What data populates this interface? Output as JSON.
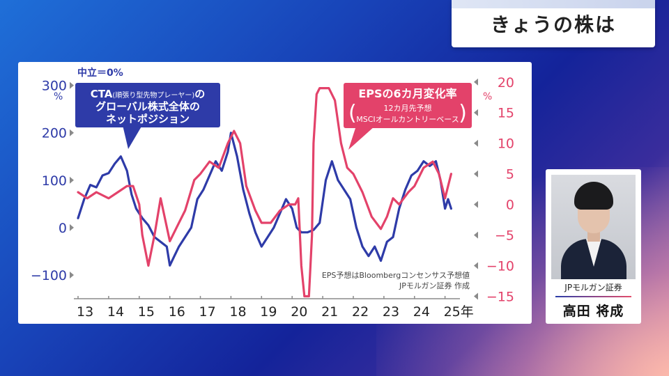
{
  "topic": {
    "title": "きょうの株は"
  },
  "chart_data": {
    "type": "line",
    "x_tick_labels": [
      "13",
      "14",
      "15",
      "16",
      "17",
      "18",
      "19",
      "20",
      "21",
      "22",
      "23",
      "24",
      "25年"
    ],
    "xlim": [
      2013.0,
      2025.35
    ],
    "left_axis": {
      "ticks": [
        "300",
        "200",
        "100",
        "0",
        "−100"
      ],
      "tick_values": [
        300,
        200,
        100,
        0,
        -100
      ],
      "unit": "%",
      "ylim": [
        -150,
        320
      ],
      "note": "中立＝0%"
    },
    "right_axis": {
      "ticks": [
        "20",
        "15",
        "10",
        "5",
        "0",
        "−5",
        "−10",
        "−15"
      ],
      "tick_values": [
        20,
        15,
        10,
        5,
        0,
        -5,
        -10,
        -15
      ],
      "unit": "%",
      "ylim": [
        -15.4,
        21.0
      ]
    },
    "series": [
      {
        "name": "CTA(順張り型先物プレーヤー)のグローバル株式全体のネットポジション",
        "color": "#2e3ba8",
        "axis": "left",
        "x": [
          2013.0,
          2013.2,
          2013.4,
          2013.6,
          2013.8,
          2014.0,
          2014.2,
          2014.4,
          2014.6,
          2014.75,
          2014.9,
          2015.1,
          2015.3,
          2015.5,
          2015.7,
          2015.9,
          2016.0,
          2016.15,
          2016.3,
          2016.5,
          2016.7,
          2016.9,
          2017.1,
          2017.3,
          2017.5,
          2017.7,
          2017.9,
          2018.0,
          2018.2,
          2018.4,
          2018.6,
          2018.8,
          2019.0,
          2019.2,
          2019.4,
          2019.6,
          2019.8,
          2020.0,
          2020.15,
          2020.3,
          2020.5,
          2020.7,
          2020.9,
          2021.1,
          2021.3,
          2021.5,
          2021.7,
          2021.9,
          2022.1,
          2022.3,
          2022.5,
          2022.7,
          2022.9,
          2023.1,
          2023.3,
          2023.5,
          2023.7,
          2023.9,
          2024.1,
          2024.3,
          2024.5,
          2024.7,
          2024.85,
          2025.0,
          2025.1,
          2025.2
        ],
        "values": [
          20,
          60,
          90,
          85,
          110,
          115,
          135,
          150,
          120,
          70,
          40,
          20,
          5,
          -20,
          -30,
          -40,
          -80,
          -60,
          -40,
          -20,
          0,
          60,
          80,
          110,
          140,
          120,
          160,
          200,
          150,
          80,
          30,
          -10,
          -40,
          -20,
          0,
          30,
          60,
          40,
          0,
          -10,
          -10,
          -5,
          10,
          100,
          140,
          100,
          80,
          60,
          0,
          -40,
          -60,
          -40,
          -70,
          -30,
          -20,
          40,
          80,
          110,
          120,
          140,
          130,
          140,
          100,
          40,
          60,
          40
        ]
      },
      {
        "name": "EPSの6カ月変化率",
        "subtitle": "12カ月先予想 MSCIオールカントリーベース",
        "color": "#e3426a",
        "axis": "right",
        "x": [
          2013.0,
          2013.3,
          2013.6,
          2014.0,
          2014.3,
          2014.6,
          2014.8,
          2015.0,
          2015.1,
          2015.3,
          2015.5,
          2015.7,
          2016.0,
          2016.2,
          2016.5,
          2016.8,
          2017.0,
          2017.3,
          2017.6,
          2017.9,
          2018.1,
          2018.3,
          2018.5,
          2018.8,
          2019.0,
          2019.3,
          2019.6,
          2019.9,
          2020.1,
          2020.2,
          2020.3,
          2020.4,
          2020.55,
          2020.65,
          2020.7,
          2020.8,
          2020.9,
          2021.0,
          2021.2,
          2021.4,
          2021.6,
          2021.8,
          2022.0,
          2022.3,
          2022.6,
          2022.9,
          2023.1,
          2023.3,
          2023.5,
          2023.8,
          2024.0,
          2024.3,
          2024.6,
          2024.8,
          2025.0,
          2025.1,
          2025.2
        ],
        "values": [
          2,
          1,
          2,
          1,
          2,
          3,
          3,
          0,
          -5,
          -10,
          -5,
          1,
          -6,
          -4,
          -1,
          4,
          5,
          7,
          6,
          10,
          12,
          10,
          3,
          -1,
          -3,
          -3,
          -1,
          0,
          0,
          1,
          -10,
          -15,
          -15,
          -5,
          10,
          18,
          19,
          19,
          19,
          17,
          10,
          6,
          5,
          2,
          -2,
          -4,
          -2,
          1,
          0,
          2,
          3,
          6,
          7,
          5,
          1,
          3,
          5
        ]
      }
    ],
    "annotations": {
      "cta_label": [
        "CTA",
        "(順張り型先物プレーヤー)",
        "の",
        "グローバル株式全体の",
        "ネットポジション"
      ],
      "eps_label": "EPSの6カ月変化率",
      "eps_sub1": "12カ月先予想",
      "eps_sub2": "MSCIオールカントリーベース",
      "source1": "EPS予想はBloombergコンセンサス予想値",
      "source2": "JPモルガン証券 作成"
    }
  },
  "person": {
    "org": "JPモルガン証券",
    "name": "高田 将成"
  },
  "colors": {
    "navy": "#2e3ba8",
    "pink": "#e3426a"
  }
}
